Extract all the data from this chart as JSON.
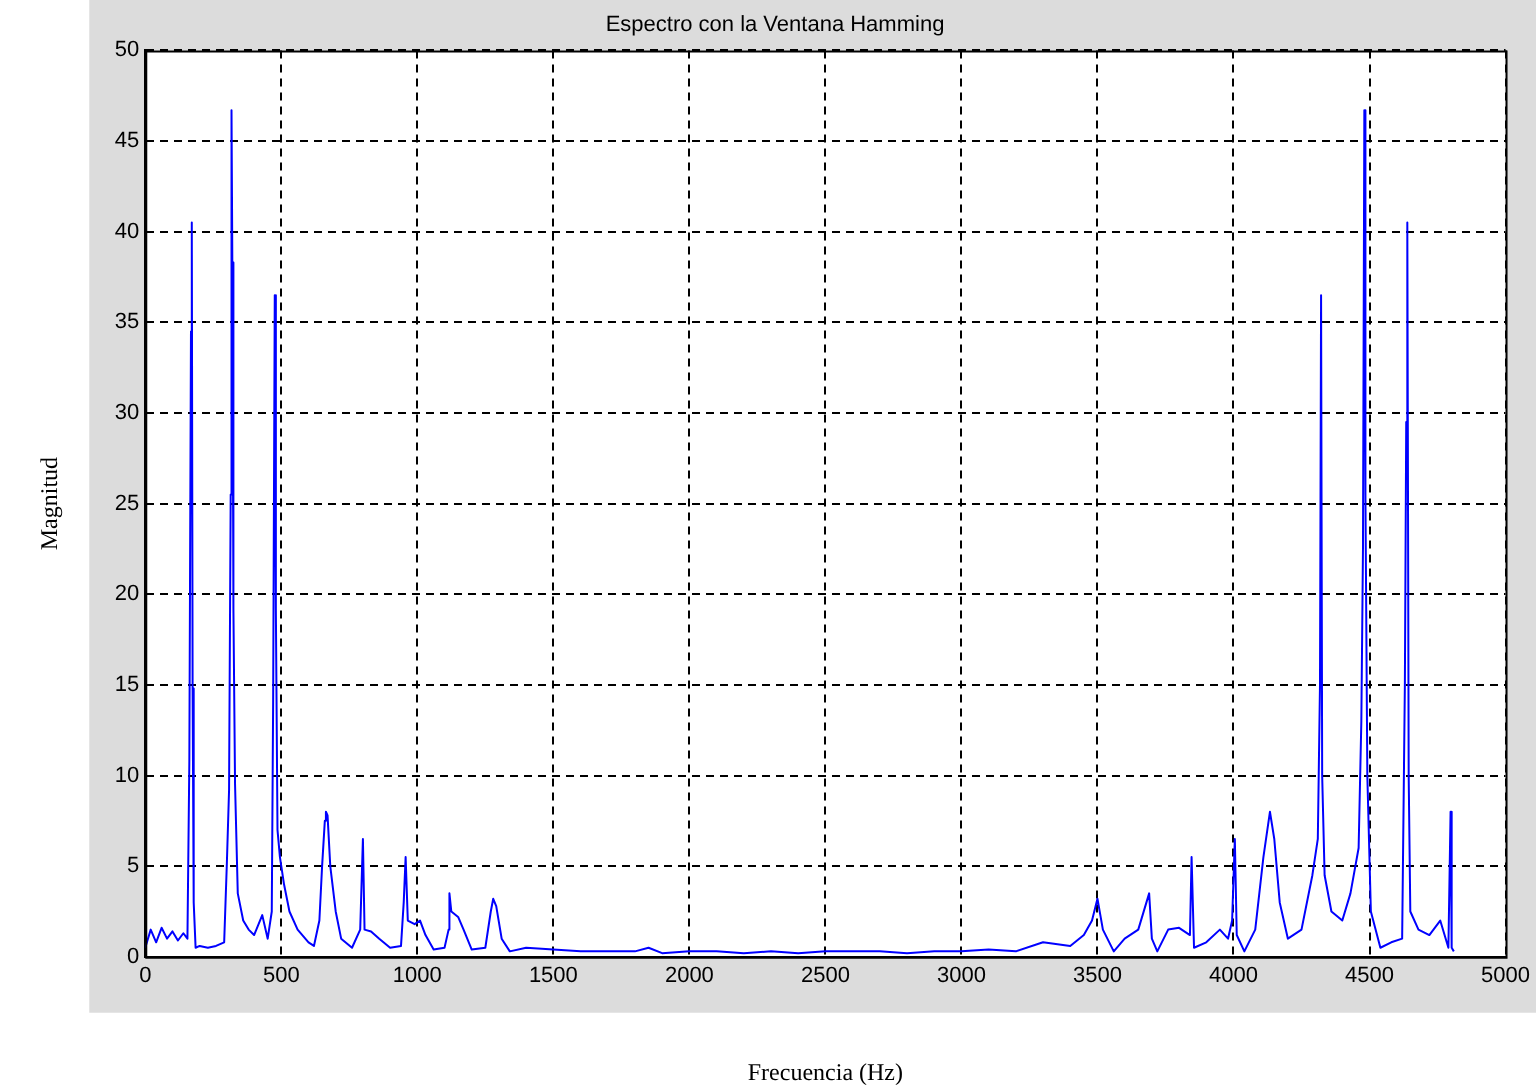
{
  "chart_data": {
    "type": "line",
    "title": "Espectro con la Ventana Hamming",
    "xlabel": "Frecuencia (Hz)",
    "ylabel": "Magnitud",
    "xlim": [
      0,
      5000
    ],
    "xticks": [
      0,
      500,
      1000,
      1500,
      2000,
      2500,
      3000,
      3500,
      4000,
      4500,
      5000
    ],
    "ylim": [
      0,
      50
    ],
    "yticks": [
      0,
      5,
      10,
      15,
      20,
      25,
      30,
      35,
      40,
      45,
      50
    ],
    "grid": true,
    "legend": false,
    "marker": "none",
    "line_style": "solid",
    "x": [
      0,
      20,
      40,
      60,
      80,
      100,
      120,
      140,
      155,
      162,
      168,
      171,
      174,
      178,
      185,
      200,
      230,
      260,
      290,
      300,
      308,
      314,
      317,
      320,
      324,
      330,
      340,
      360,
      380,
      400,
      430,
      450,
      465,
      470,
      476,
      480,
      486,
      495,
      510,
      530,
      560,
      600,
      620,
      640,
      650,
      660,
      664,
      670,
      680,
      700,
      720,
      760,
      790,
      800,
      806,
      830,
      860,
      900,
      940,
      950,
      957,
      965,
      990,
      1010,
      1030,
      1060,
      1100,
      1115,
      1118,
      1125,
      1150,
      1170,
      1200,
      1250,
      1270,
      1279,
      1290,
      1310,
      1340,
      1400,
      1500,
      1600,
      1700,
      1800,
      1850,
      1900,
      2000,
      2100,
      2200,
      2300,
      2400,
      2500,
      2600,
      2700,
      2800,
      2900,
      3000,
      3100,
      3200,
      3300,
      3400,
      3450,
      3480,
      3500,
      3520,
      3560,
      3600,
      3650,
      3690,
      3700,
      3720,
      3760,
      3800,
      3840,
      3846,
      3855,
      3900,
      3950,
      3980,
      3995,
      4005,
      4012,
      4040,
      4080,
      4110,
      4134,
      4150,
      4170,
      4200,
      4250,
      4290,
      4310,
      4318,
      4322,
      4326,
      4335,
      4360,
      4400,
      4430,
      4460,
      4470,
      4476,
      4481,
      4485,
      4492,
      4505,
      4540,
      4580,
      4620,
      4630,
      4635,
      4639,
      4644,
      4650,
      4680,
      4720,
      4760,
      4790,
      4798,
      4802,
      4810
    ],
    "series": [
      {
        "color": "#0000ff",
        "values": [
          0.5,
          1.5,
          0.8,
          1.6,
          1.0,
          1.4,
          0.9,
          1.3,
          1.0,
          10.8,
          34.5,
          40.5,
          14.8,
          3,
          0.5,
          0.6,
          0.5,
          0.6,
          0.8,
          5.2,
          9.2,
          25.5,
          46.7,
          38.3,
          19.2,
          9.5,
          3.5,
          2.0,
          1.5,
          1.2,
          2.3,
          1.0,
          2.5,
          14,
          36.5,
          19.2,
          7,
          5.5,
          4,
          2.5,
          1.5,
          0.8,
          0.6,
          2,
          5,
          7.5,
          8,
          7.8,
          5,
          2.5,
          1,
          0.5,
          1.5,
          6.5,
          1.5,
          1.4,
          1.0,
          0.5,
          0.6,
          3,
          5.5,
          2,
          1.8,
          2.0,
          1.2,
          0.4,
          0.5,
          1.5,
          3.5,
          2.5,
          2.2,
          1.5,
          0.4,
          0.5,
          2.5,
          3.2,
          2.8,
          1.0,
          0.3,
          0.5,
          0.4,
          0.3,
          0.3,
          0.3,
          0.5,
          0.2,
          0.3,
          0.3,
          0.2,
          0.3,
          0.2,
          0.3,
          0.3,
          0.3,
          0.2,
          0.3,
          0.3,
          0.4,
          0.3,
          0.8,
          0.6,
          1.2,
          2.0,
          3.2,
          1.5,
          0.3,
          1.0,
          1.5,
          3.5,
          1.0,
          0.3,
          1.5,
          1.6,
          1.2,
          5.5,
          0.5,
          0.8,
          1.5,
          1.0,
          2,
          6.5,
          1.2,
          0.3,
          1.5,
          5.5,
          8,
          6.5,
          3,
          1.0,
          1.5,
          4.5,
          6.5,
          15,
          36.5,
          10,
          4.5,
          2.5,
          2.0,
          3.5,
          6,
          13,
          22.5,
          46.7,
          25.5,
          10,
          2.5,
          0.5,
          0.8,
          1,
          15,
          29.5,
          40.5,
          10,
          2.5,
          1.5,
          1.2,
          2,
          0.5,
          8,
          0.5,
          0.3
        ]
      }
    ]
  }
}
